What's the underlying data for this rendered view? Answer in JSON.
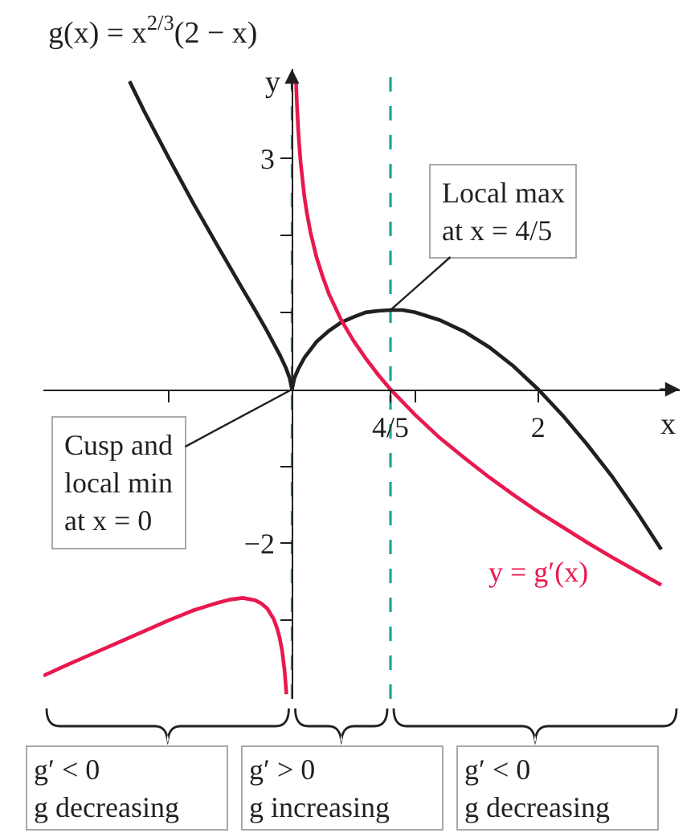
{
  "chart_data": {
    "type": "line",
    "title": "g(x) = x$^{2/3}$(2 − x)",
    "xlabel": "x",
    "ylabel": "y",
    "xlim": [
      -2.02,
      3.15
    ],
    "ylim": [
      -4.02,
      4.16
    ],
    "xticks": [
      {
        "value": -1,
        "label": null
      },
      {
        "value": 0.8,
        "label": "4/5"
      },
      {
        "value": 1,
        "label": null
      },
      2
    ],
    "yticks": [
      {
        "value": -3,
        "label": null
      },
      {
        "value": -2,
        "label": "−2"
      },
      {
        "value": -1,
        "label": null
      },
      {
        "value": 1,
        "label": null
      },
      {
        "value": 2,
        "label": null
      },
      3
    ],
    "series": [
      {
        "color": "#231f20",
        "x": [
          -1.32,
          -1.2,
          -1.0,
          -0.8,
          -0.6,
          -0.4,
          -0.3,
          -0.2,
          -0.1,
          -0.05,
          -0.02,
          0,
          0.02,
          0.05,
          0.1,
          0.2,
          0.3,
          0.4,
          0.5,
          0.6,
          0.7,
          0.8,
          0.9,
          1.0,
          1.2,
          1.4,
          1.6,
          1.8,
          2.0,
          2.2,
          2.4,
          2.6,
          2.8,
          3.0
        ],
        "values": [
          4.0,
          3.61,
          3.0,
          2.41,
          1.85,
          1.3,
          1.03,
          0.75,
          0.45,
          0.28,
          0.15,
          0,
          0.15,
          0.26,
          0.41,
          0.62,
          0.76,
          0.87,
          0.94,
          1.0,
          1.02,
          1.03,
          1.03,
          1.0,
          0.9,
          0.75,
          0.55,
          0.3,
          0,
          -0.34,
          -0.72,
          -1.13,
          -1.59,
          -2.08
        ]
      },
      {
        "name": "y = g′(x)",
        "color": "#e8194f",
        "x": [
          -2.02,
          -1.8,
          -1.6,
          -1.4,
          -1.2,
          -1.0,
          -0.8,
          -0.6,
          -0.5,
          -0.4,
          -0.3,
          -0.25,
          -0.2,
          -0.15,
          -0.12,
          -0.1,
          -0.08,
          -0.06,
          -0.045,
          0,
          0.033,
          0.04,
          0.05,
          0.06,
          0.07,
          0.1,
          0.12,
          0.15,
          0.2,
          0.25,
          0.3,
          0.4,
          0.5,
          0.6,
          0.7,
          0.8,
          1.0,
          1.2,
          1.4,
          1.6,
          1.8,
          2.0,
          2.2,
          2.4,
          2.6,
          2.8,
          3.0
        ],
        "values": [
          -3.72,
          -3.56,
          -3.42,
          -3.28,
          -3.14,
          -3.0,
          -2.87,
          -2.77,
          -2.73,
          -2.71,
          -2.74,
          -2.78,
          -2.85,
          -2.98,
          -3.11,
          -3.23,
          -3.4,
          -3.66,
          -3.96,
          null,
          3.98,
          3.7,
          3.39,
          3.15,
          2.95,
          2.51,
          2.3,
          2.04,
          1.71,
          1.46,
          1.24,
          0.9,
          0.63,
          0.4,
          0.19,
          0,
          -0.33,
          -0.63,
          -0.89,
          -1.14,
          -1.37,
          -1.59,
          -1.79,
          -1.99,
          -2.18,
          -2.36,
          -2.54
        ]
      }
    ],
    "ref_lines": [
      {
        "axis": "x",
        "value": 0,
        "color": "#19a99b",
        "line_style": "dashed"
      },
      {
        "axis": "x",
        "value": 0.8,
        "color": "#19a99b",
        "line_style": "dashed"
      }
    ],
    "annotations": [
      {
        "text": "Local max\nat x = 4/5",
        "x": 0.8,
        "y": 1.03
      },
      {
        "text": "Cusp and\nlocal min\nat x = 0",
        "x": 0,
        "y": 0
      },
      "g′ < 0\ng decreasing",
      "g′ > 0\ng increasing",
      "g′ < 0\ng decreasing"
    ],
    "grid": false,
    "legend": false,
    "marker": "none",
    "line_style": "solid"
  }
}
